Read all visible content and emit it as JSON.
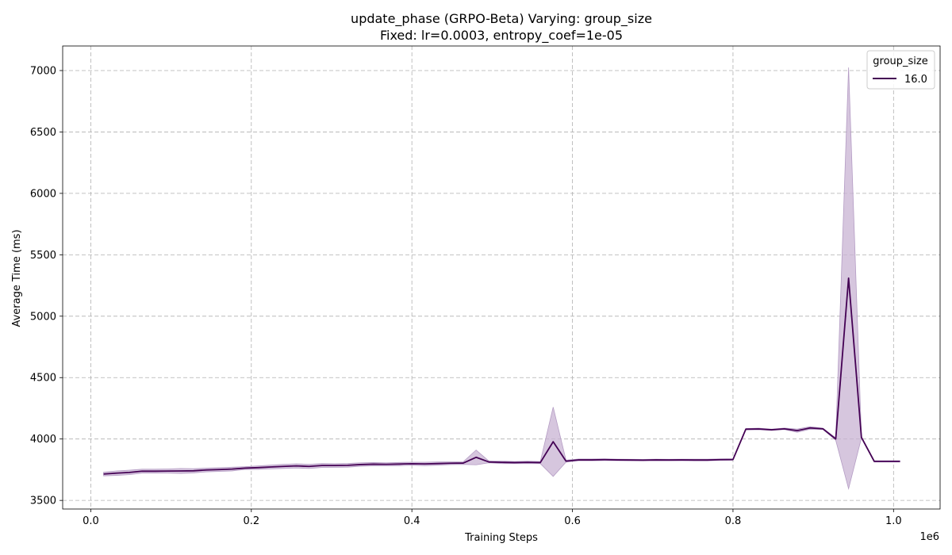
{
  "chart_data": {
    "type": "line",
    "title": "update_phase (GRPO-Beta) Varying: group_size",
    "subtitle": "Fixed: lr=0.0003, entropy_coef=1e-05",
    "xlabel": "Training Steps",
    "ylabel": "Average Time (ms)",
    "x_scale_label": "1e6",
    "xlim": [
      -0.035,
      1.058
    ],
    "ylim": [
      3430,
      7200
    ],
    "x_ticks": [
      0.0,
      0.2,
      0.4,
      0.6,
      0.8,
      1.0
    ],
    "x_tick_labels": [
      "0.0",
      "0.2",
      "0.4",
      "0.6",
      "0.8",
      "1.0"
    ],
    "y_ticks": [
      3500,
      4000,
      4500,
      5000,
      5500,
      6000,
      6500,
      7000
    ],
    "y_tick_labels": [
      "3500",
      "4000",
      "4500",
      "5000",
      "5500",
      "6000",
      "6500",
      "7000"
    ],
    "grid": true,
    "legend": {
      "title": "group_size",
      "placement": "top-right"
    },
    "colors": {
      "line": "#440154",
      "band": "#c8b3d3",
      "band_edge": "#b49cc4"
    },
    "series": [
      {
        "name": "16.0",
        "x": [
          0.016,
          0.032,
          0.048,
          0.064,
          0.08,
          0.096,
          0.112,
          0.128,
          0.144,
          0.16,
          0.176,
          0.192,
          0.208,
          0.224,
          0.24,
          0.256,
          0.272,
          0.288,
          0.304,
          0.32,
          0.336,
          0.352,
          0.368,
          0.384,
          0.4,
          0.416,
          0.432,
          0.448,
          0.464,
          0.48,
          0.496,
          0.512,
          0.528,
          0.544,
          0.56,
          0.576,
          0.592,
          0.608,
          0.624,
          0.64,
          0.656,
          0.672,
          0.688,
          0.704,
          0.72,
          0.736,
          0.752,
          0.768,
          0.784,
          0.8,
          0.816,
          0.832,
          0.848,
          0.864,
          0.88,
          0.896,
          0.912,
          0.928,
          0.944,
          0.96,
          0.976,
          0.992,
          1.008
        ],
        "y": [
          3715,
          3722,
          3728,
          3738,
          3738,
          3739,
          3740,
          3741,
          3748,
          3751,
          3755,
          3763,
          3767,
          3772,
          3777,
          3781,
          3777,
          3784,
          3784,
          3786,
          3792,
          3795,
          3794,
          3796,
          3799,
          3797,
          3800,
          3803,
          3804,
          3851,
          3813,
          3810,
          3808,
          3810,
          3808,
          3978,
          3820,
          3830,
          3830,
          3832,
          3830,
          3829,
          3828,
          3830,
          3829,
          3830,
          3829,
          3829,
          3832,
          3833,
          4080,
          4082,
          4075,
          4083,
          4068,
          4090,
          4083,
          4000,
          5310,
          4013,
          3818,
          3818,
          3818
        ],
        "y_lower": [
          3700,
          3704,
          3710,
          3722,
          3722,
          3722,
          3720,
          3724,
          3733,
          3736,
          3740,
          3752,
          3753,
          3757,
          3760,
          3764,
          3760,
          3768,
          3769,
          3771,
          3778,
          3782,
          3782,
          3783,
          3787,
          3783,
          3787,
          3792,
          3793,
          3790,
          3806,
          3800,
          3800,
          3800,
          3800,
          3695,
          3812,
          3823,
          3823,
          3825,
          3824,
          3823,
          3822,
          3824,
          3823,
          3824,
          3822,
          3822,
          3826,
          3827,
          4075,
          4076,
          4070,
          4077,
          4055,
          4080,
          4078,
          3990,
          3595,
          4008,
          3813,
          3813,
          3813
        ],
        "y_upper": [
          3730,
          3740,
          3746,
          3754,
          3754,
          3756,
          3760,
          3758,
          3763,
          3766,
          3770,
          3774,
          3781,
          3787,
          3794,
          3798,
          3794,
          3800,
          3799,
          3801,
          3806,
          3808,
          3806,
          3809,
          3811,
          3811,
          3813,
          3814,
          3815,
          3910,
          3820,
          3820,
          3816,
          3820,
          3816,
          4260,
          3828,
          3837,
          3837,
          3839,
          3836,
          3835,
          3834,
          3836,
          3835,
          3836,
          3836,
          3836,
          3838,
          3839,
          4085,
          4088,
          4080,
          4089,
          4081,
          4100,
          4088,
          4010,
          7025,
          4018,
          3823,
          3823,
          3823
        ]
      }
    ]
  }
}
